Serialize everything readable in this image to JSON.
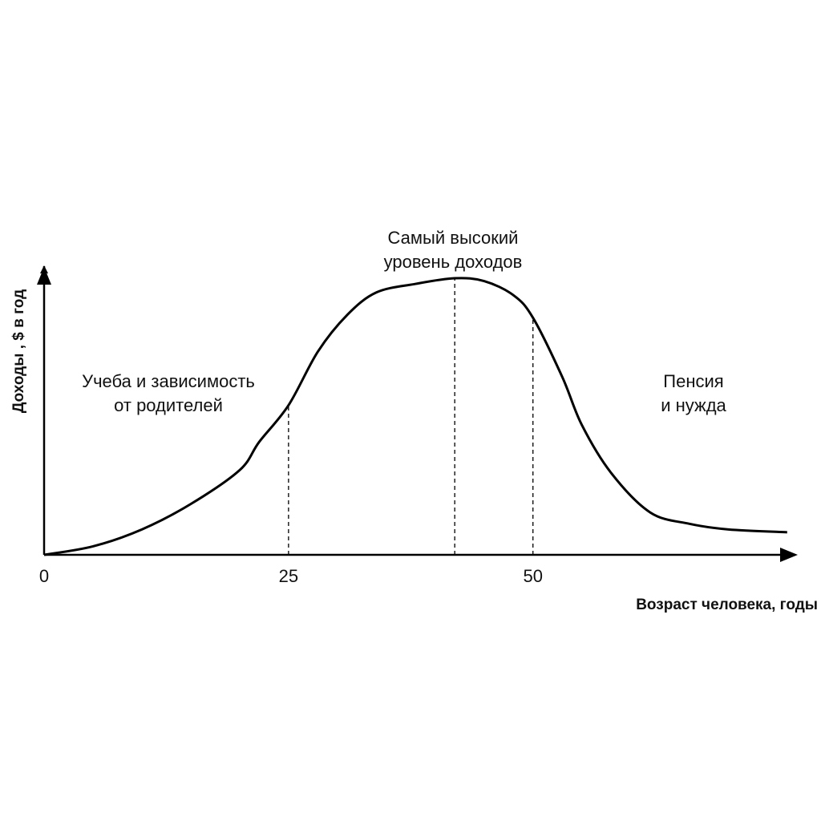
{
  "chart_data": {
    "type": "line",
    "y_label": "Доходы , $ в год",
    "x_label": "Возраст человека, годы",
    "x": [
      0,
      5,
      10,
      15,
      20,
      22,
      25,
      28,
      31,
      34,
      38,
      42,
      45,
      48,
      50,
      53,
      55,
      58,
      62,
      66,
      70,
      76
    ],
    "series": [
      {
        "color": "#000000",
        "values": [
          0,
          3,
          9,
          18,
          30,
          40,
          53,
          72,
          85,
          93,
          96,
          98,
          97,
          92,
          84,
          63,
          46,
          29,
          15,
          11,
          9,
          8
        ]
      }
    ],
    "xlim": [
      0,
      77
    ],
    "ylim": [
      0,
      100
    ],
    "xticks": [
      0,
      25,
      50
    ],
    "reference_lines": [
      25,
      42,
      50
    ],
    "annotations": [
      {
        "lines": [
          "Учеба и зависимость",
          "от родителей"
        ]
      },
      {
        "lines": [
          "Самый высокий",
          "уровень доходов"
        ]
      },
      {
        "lines": [
          "Пенсия",
          "и нужда"
        ]
      }
    ]
  }
}
